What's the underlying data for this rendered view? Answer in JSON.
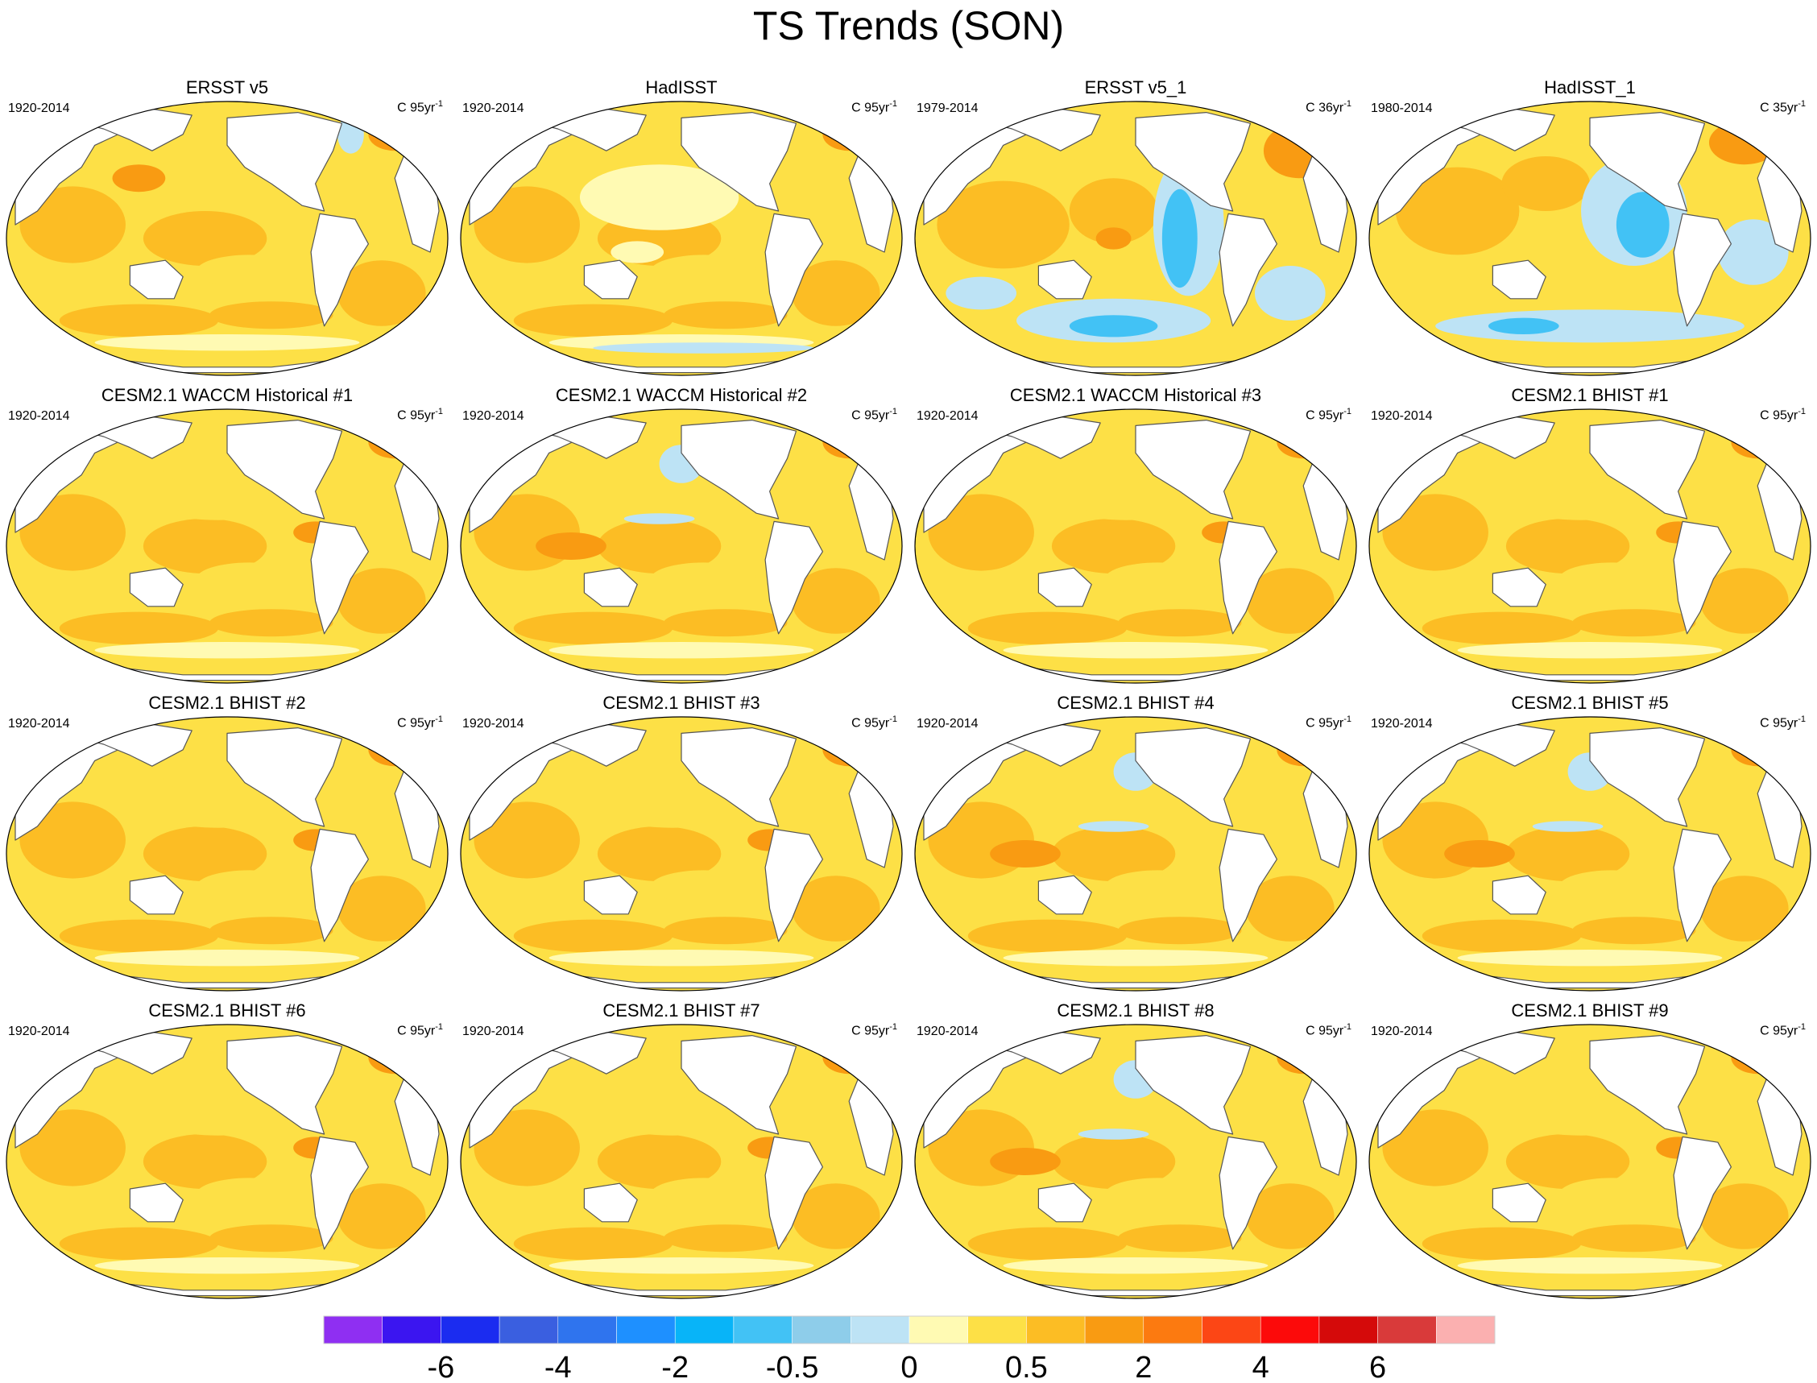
{
  "title": "TS Trends (SON)",
  "chart_data": {
    "type": "heatmap",
    "title": "TS Trends (SON)",
    "variable": "TS",
    "season": "SON",
    "colorbar": {
      "bin_edges": [
        "-6",
        "-4",
        "-2",
        "-0.5",
        "0",
        "0.5",
        "2",
        "4",
        "6"
      ],
      "colors": [
        "#8f2ff2",
        "#3b15f0",
        "#1b2cf0",
        "#3a5fe0",
        "#2f74ee",
        "#1e90ff",
        "#08b4f8",
        "#42c2f5",
        "#8ecdea",
        "#bde3f5",
        "#fffab3",
        "#fde046",
        "#fcbd24",
        "#f99b12",
        "#fc7a10",
        "#fc4615",
        "#fc0a0a",
        "#d50a0a",
        "#d93a3a",
        "#fbb0b0"
      ]
    },
    "panels": [
      {
        "title": "ERSST v5",
        "period": "1920-2014",
        "units_main": "C 95yr",
        "units_exp": "-1",
        "pattern": "warm"
      },
      {
        "title": "HadISST",
        "period": "1920-2014",
        "units_main": "C 95yr",
        "units_exp": "-1",
        "pattern": "warm-soblue"
      },
      {
        "title": "ERSST v5_1",
        "period": "1979-2014",
        "units_main": "C 36yr",
        "units_exp": "-1",
        "pattern": "cool-epac"
      },
      {
        "title": "HadISST_1",
        "period": "1980-2014",
        "units_main": "C 35yr",
        "units_exp": "-1",
        "pattern": "cool-epac2"
      },
      {
        "title": "CESM2.1 WACCM Historical #1",
        "period": "1920-2014",
        "units_main": "C 95yr",
        "units_exp": "-1",
        "pattern": "model"
      },
      {
        "title": "CESM2.1 WACCM Historical #2",
        "period": "1920-2014",
        "units_main": "C 95yr",
        "units_exp": "-1",
        "pattern": "model-npblue"
      },
      {
        "title": "CESM2.1 WACCM Historical #3",
        "period": "1920-2014",
        "units_main": "C 95yr",
        "units_exp": "-1",
        "pattern": "model"
      },
      {
        "title": "CESM2.1 BHIST #1",
        "period": "1920-2014",
        "units_main": "C 95yr",
        "units_exp": "-1",
        "pattern": "model"
      },
      {
        "title": "CESM2.1 BHIST #2",
        "period": "1920-2014",
        "units_main": "C 95yr",
        "units_exp": "-1",
        "pattern": "model"
      },
      {
        "title": "CESM2.1 BHIST #3",
        "period": "1920-2014",
        "units_main": "C 95yr",
        "units_exp": "-1",
        "pattern": "model"
      },
      {
        "title": "CESM2.1 BHIST #4",
        "period": "1920-2014",
        "units_main": "C 95yr",
        "units_exp": "-1",
        "pattern": "model-npblue"
      },
      {
        "title": "CESM2.1 BHIST #5",
        "period": "1920-2014",
        "units_main": "C 95yr",
        "units_exp": "-1",
        "pattern": "model-npblue"
      },
      {
        "title": "CESM2.1 BHIST #6",
        "period": "1920-2014",
        "units_main": "C 95yr",
        "units_exp": "-1",
        "pattern": "model"
      },
      {
        "title": "CESM2.1 BHIST #7",
        "period": "1920-2014",
        "units_main": "C 95yr",
        "units_exp": "-1",
        "pattern": "model"
      },
      {
        "title": "CESM2.1 BHIST #8",
        "period": "1920-2014",
        "units_main": "C 95yr",
        "units_exp": "-1",
        "pattern": "model-npblue"
      },
      {
        "title": "CESM2.1 BHIST #9",
        "period": "1920-2014",
        "units_main": "C 95yr",
        "units_exp": "-1",
        "pattern": "model"
      }
    ]
  }
}
